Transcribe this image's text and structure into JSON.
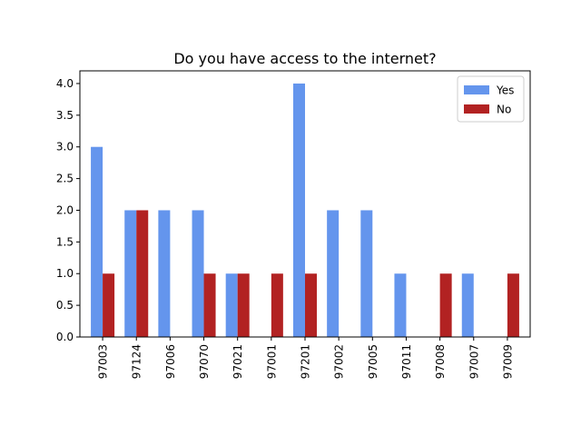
{
  "chart_data": {
    "type": "bar",
    "title": "Do you have access to the internet?",
    "xlabel": "",
    "ylabel": "",
    "categories": [
      "97003",
      "97124",
      "97006",
      "97070",
      "97021",
      "97001",
      "97201",
      "97002",
      "97005",
      "97011",
      "97008",
      "97007",
      "97009"
    ],
    "series": [
      {
        "name": "Yes",
        "color": "#6495ed",
        "values": [
          3,
          2,
          2,
          2,
          1,
          0,
          4,
          2,
          2,
          1,
          0,
          1,
          0
        ]
      },
      {
        "name": "No",
        "color": "#b22222",
        "values": [
          1,
          2,
          0,
          1,
          1,
          1,
          1,
          0,
          0,
          0,
          1,
          0,
          1
        ]
      }
    ],
    "ylim": [
      0,
      4.2
    ],
    "yticks": [
      "0.0",
      "0.5",
      "1.0",
      "1.5",
      "2.0",
      "2.5",
      "3.0",
      "3.5",
      "4.0"
    ],
    "legend_position": "top-right",
    "grid": false
  }
}
